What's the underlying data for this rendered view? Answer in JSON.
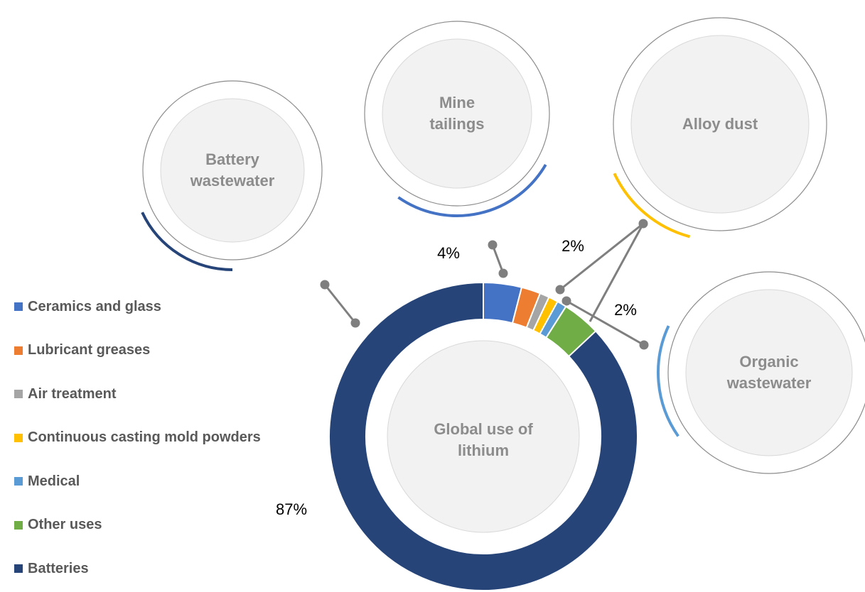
{
  "chart_data": {
    "type": "donut",
    "center_label": "Global use of lithium",
    "categories": [
      "Ceramics and glass",
      "Lubricant greases",
      "Air treatment",
      "Continuous casting mold powders",
      "Medical",
      "Other uses",
      "Batteries"
    ],
    "values": [
      4,
      2,
      1,
      1,
      1,
      4,
      87
    ],
    "value_labels": [
      "4%",
      null,
      null,
      null,
      null,
      null,
      "87%"
    ],
    "colors": [
      "#4472c4",
      "#ed7d31",
      "#a5a5a5",
      "#ffc000",
      "#5b9bd5",
      "#70ad47",
      "#264478"
    ],
    "annotations": [
      "2%",
      "2%"
    ],
    "sources": [
      {
        "name": "Battery wastewater",
        "color": "#264478"
      },
      {
        "name": "Mine tailings",
        "color": "#4472c4"
      },
      {
        "name": "Alloy dust",
        "color": "#ffc000"
      },
      {
        "name": "Organic wastewater",
        "color": "#5b9bd5"
      }
    ]
  }
}
